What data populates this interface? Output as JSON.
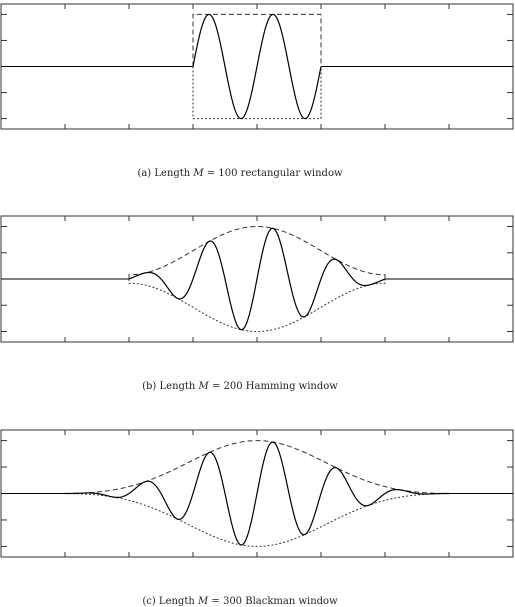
{
  "chart_data": [
    {
      "type": "line",
      "window": "rectangular",
      "length": 100,
      "caption": {
        "prefix": "(a) Length ",
        "symbol": "M",
        "suffix": " = 100 rectangular window"
      },
      "xlim": [
        -200,
        200
      ],
      "ylim": [
        -1.2,
        1.2
      ],
      "cycles": 2,
      "series": [
        {
          "role": "windowed-signal"
        },
        {
          "role": "upper-envelope"
        },
        {
          "role": "lower-envelope"
        }
      ]
    },
    {
      "type": "line",
      "window": "hamming",
      "length": 200,
      "caption": {
        "prefix": "(b) Length ",
        "symbol": "M",
        "suffix": " = 200 Hamming window"
      },
      "xlim": [
        -200,
        200
      ],
      "ylim": [
        -1.2,
        1.2
      ],
      "cycles": 4,
      "series": [
        {
          "role": "windowed-signal"
        },
        {
          "role": "upper-envelope"
        },
        {
          "role": "lower-envelope"
        }
      ]
    },
    {
      "type": "line",
      "window": "blackman",
      "length": 300,
      "caption": {
        "prefix": "(c) Length ",
        "symbol": "M",
        "suffix": " = 300 Blackman window"
      },
      "xlim": [
        -200,
        200
      ],
      "ylim": [
        -1.2,
        1.2
      ],
      "cycles": 6,
      "series": [
        {
          "role": "windowed-signal"
        },
        {
          "role": "upper-envelope"
        },
        {
          "role": "lower-envelope"
        }
      ]
    }
  ]
}
